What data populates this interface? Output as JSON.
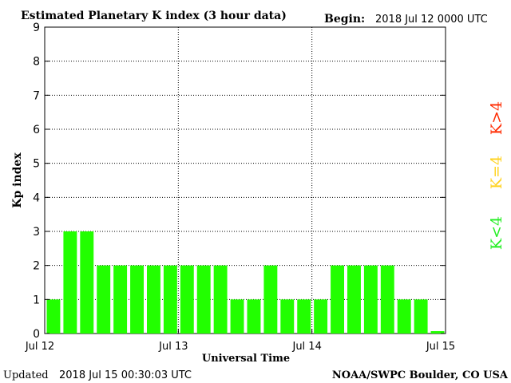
{
  "header": {
    "title": "Estimated Planetary K index (3 hour data)",
    "begin_label": "Begin:",
    "begin_value": "2018 Jul 12 0000 UTC"
  },
  "footer": {
    "updated_label": "Updated",
    "updated_value": "2018 Jul 15 00:30:03 UTC",
    "source": "NOAA/SWPC Boulder, CO USA"
  },
  "legend": [
    {
      "label": "K>4",
      "color": "#ff2a00"
    },
    {
      "label": "K=4",
      "color": "#ffd21e"
    },
    {
      "label": "K<4",
      "color": "#22ee22"
    }
  ],
  "chart_data": {
    "type": "bar",
    "title": "Estimated Planetary K index (3 hour data)",
    "xlabel": "Universal Time",
    "ylabel": "Kp index",
    "ylim": [
      0,
      9
    ],
    "yticks": [
      "0",
      "1",
      "2",
      "3",
      "4",
      "5",
      "6",
      "7",
      "8",
      "9"
    ],
    "xticks": [
      "Jul 12",
      "Jul 13",
      "Jul 14",
      "Jul 15"
    ],
    "grid": true,
    "bar_color": "#22ff00",
    "values": [
      1,
      3,
      3,
      2,
      2,
      2,
      2,
      2,
      2,
      2,
      2,
      1,
      1,
      2,
      1,
      1,
      1,
      2,
      2,
      2,
      2,
      1,
      1,
      0.07
    ]
  }
}
